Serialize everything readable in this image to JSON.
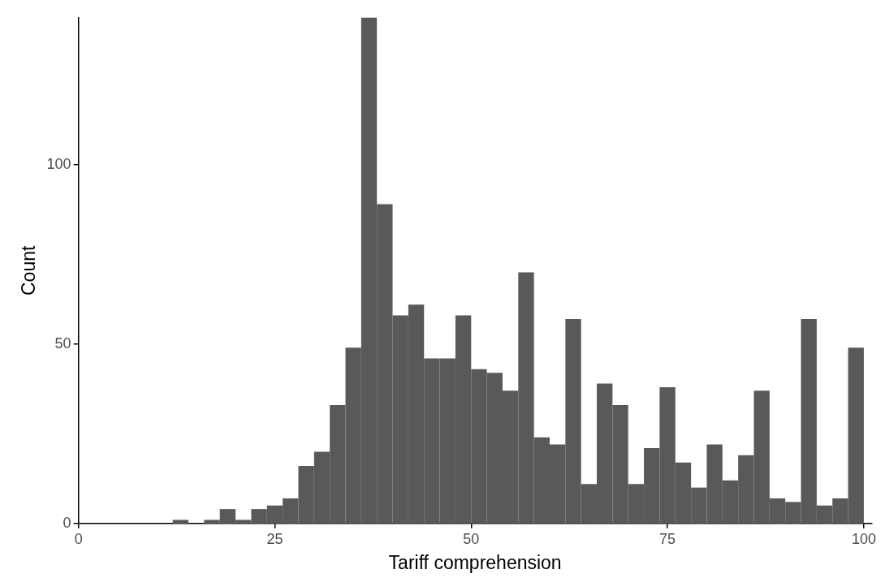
{
  "chart_data": {
    "type": "histogram",
    "xlabel": "Tariff comprehension",
    "ylabel": "Count",
    "bins": [
      0,
      2,
      4,
      6,
      8,
      10,
      12,
      14,
      16,
      18,
      20,
      22,
      24,
      26,
      28,
      30,
      32,
      34,
      36,
      38,
      40,
      42,
      44,
      46,
      48,
      50,
      52,
      54,
      56,
      58,
      60,
      62,
      64,
      66,
      68,
      70,
      72,
      74,
      76,
      78,
      80,
      82,
      84,
      86,
      88,
      90,
      92,
      94,
      96,
      98,
      100
    ],
    "values": [
      0,
      0,
      0,
      0,
      0,
      0,
      1,
      0,
      1,
      4,
      1,
      4,
      5,
      7,
      16,
      20,
      33,
      49,
      141,
      89,
      58,
      61,
      46,
      46,
      58,
      43,
      42,
      37,
      70,
      24,
      22,
      57,
      11,
      39,
      33,
      11,
      21,
      38,
      17,
      10,
      22,
      12,
      19,
      37,
      7,
      6,
      57,
      5,
      7,
      49
    ],
    "color": "#595959",
    "xlim": [
      0,
      101
    ],
    "ylim": [
      0,
      141
    ],
    "xticks": [
      0,
      25,
      50,
      75,
      100
    ],
    "yticks": [
      0,
      50,
      100
    ],
    "grid": false,
    "legend": false
  }
}
